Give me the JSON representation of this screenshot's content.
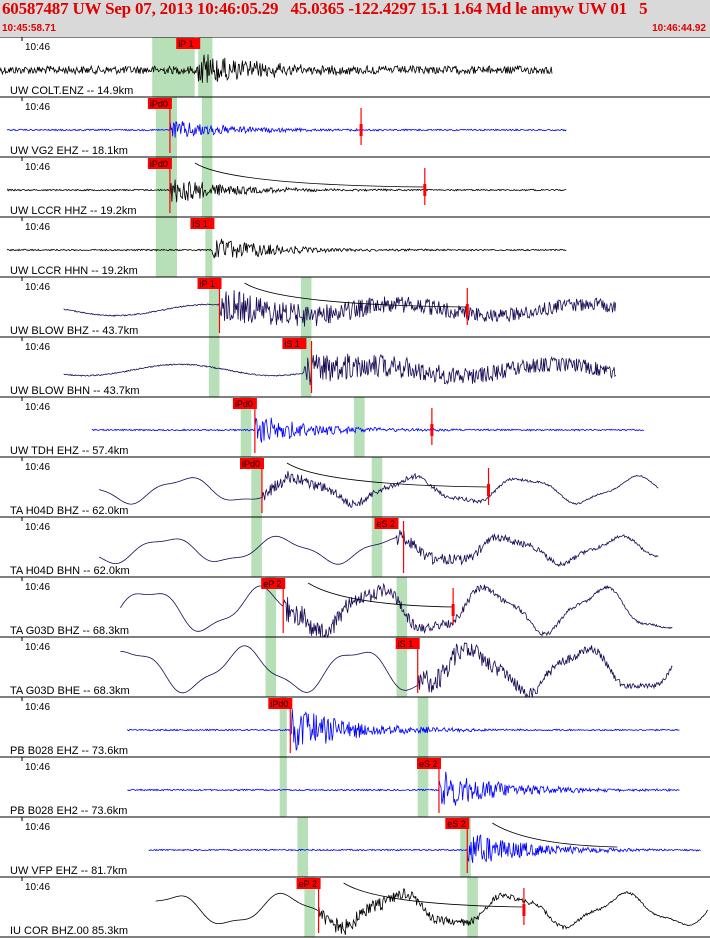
{
  "header": {
    "title": "60587487 UW Sep 07, 2013 10:46:05.29   45.0365 -122.4297 15.1 1.64 Md le amyw UW 01   5",
    "time_start": "10:45:58.71",
    "time_end": "10:46:44.92"
  },
  "colors": {
    "header_bg": "#d9d9d9",
    "header_text": "#e00000",
    "pick": "#ff0000",
    "window": "#b8e0b8",
    "trace_black": "#000000",
    "trace_blue": "#0000ff",
    "trace_navy": "#1a0a55"
  },
  "chart_data": {
    "type": "line",
    "x_range_seconds": [
      0,
      46.21
    ],
    "tick_label": "10:46",
    "traces": [
      {
        "station": "UW COLT.ENZ -- 14.9km",
        "pick": "iP 1",
        "color": "black",
        "kind": "hf",
        "start": 0.0,
        "end": 0.78,
        "onset": 0.28,
        "amp": 14,
        "win": [
          0.215,
          0.275,
          0.28,
          0.3
        ],
        "tick": null,
        "end_mark": null,
        "curve": false
      },
      {
        "station": "UW VG2 EHZ -- 18.1km",
        "pick": "iPd0",
        "color": "blue",
        "kind": "hf",
        "start": 0.01,
        "end": 0.8,
        "onset": 0.24,
        "amp": 9,
        "win": [
          0.22,
          0.25,
          0.285,
          0.3
        ],
        "tick": 0.24,
        "end_mark": 0.51,
        "curve": false
      },
      {
        "station": "UW LCCR HHZ -- 19.2km",
        "pick": "iPd0",
        "color": "black",
        "kind": "hf",
        "start": 0.01,
        "end": 0.8,
        "onset": 0.24,
        "amp": 12,
        "win": [
          0.22,
          0.25,
          0.285,
          0.3
        ],
        "tick": 0.24,
        "end_mark": 0.6,
        "curve": true
      },
      {
        "station": "UW LCCR HHN -- 19.2km",
        "pick": "iS 1",
        "color": "black",
        "kind": "hf",
        "start": 0.01,
        "end": 0.8,
        "onset": 0.3,
        "amp": 11,
        "win": [
          0.22,
          0.25,
          0.29,
          0.3
        ],
        "tick": null,
        "end_mark": null,
        "curve": false
      },
      {
        "station": "UW BLOW BHZ -- 43.7km",
        "pick": "iP 1",
        "color": "navy",
        "kind": "mix",
        "start": 0.09,
        "end": 0.87,
        "onset": 0.31,
        "amp": 16,
        "win": [
          0.295,
          0.31,
          0.425,
          0.44
        ],
        "tick": 0.31,
        "end_mark": 0.66,
        "curve": true
      },
      {
        "station": "UW BLOW BHN -- 43.7km",
        "pick": "iS 1",
        "color": "navy",
        "kind": "mix",
        "start": 0.09,
        "end": 0.87,
        "onset": 0.43,
        "amp": 16,
        "win": [
          0.295,
          0.31,
          0.425,
          0.44
        ],
        "tick": 0.44,
        "end_mark": null,
        "curve": false
      },
      {
        "station": "UW TDH EHZ -- 57.4km",
        "pick": "iPd0",
        "color": "blue",
        "kind": "hf",
        "start": 0.13,
        "end": 0.91,
        "onset": 0.36,
        "amp": 13,
        "win": [
          0.34,
          0.355,
          0.5,
          0.515
        ],
        "tick": 0.36,
        "end_mark": 0.61,
        "curve": false
      },
      {
        "station": "TA H04D BHZ -- 62.0km",
        "pick": "iPd0",
        "color": "navy",
        "kind": "lp",
        "start": 0.14,
        "end": 0.93,
        "onset": 0.37,
        "amp": 13,
        "win": [
          0.355,
          0.37,
          0.525,
          0.54
        ],
        "tick": 0.37,
        "end_mark": 0.69,
        "curve": true
      },
      {
        "station": "TA H04D BHN -- 62.0km",
        "pick": "eS 2",
        "color": "navy",
        "kind": "lp",
        "start": 0.14,
        "end": 0.93,
        "onset": 0.56,
        "amp": 13,
        "win": [
          0.355,
          0.37,
          0.525,
          0.54
        ],
        "tick": 0.57,
        "end_mark": null,
        "curve": false
      },
      {
        "station": "TA G03D BHZ -- 68.3km",
        "pick": "eP 2",
        "color": "navy",
        "kind": "lp",
        "start": 0.17,
        "end": 0.95,
        "onset": 0.4,
        "amp": 22,
        "win": [
          0.375,
          0.39,
          0.56,
          0.575
        ],
        "tick": 0.4,
        "end_mark": 0.64,
        "curve": true
      },
      {
        "station": "TA G03D BHE -- 68.3km",
        "pick": "iS 1",
        "color": "navy",
        "kind": "lp",
        "start": 0.17,
        "end": 0.95,
        "onset": 0.59,
        "amp": 22,
        "win": [
          0.375,
          0.39,
          0.56,
          0.575
        ],
        "tick": 0.59,
        "end_mark": null,
        "curve": false
      },
      {
        "station": "PB B028 EHZ -- 73.6km",
        "pick": "iPd0",
        "color": "blue",
        "kind": "hf",
        "start": 0.18,
        "end": 0.96,
        "onset": 0.41,
        "amp": 20,
        "win": [
          0.395,
          0.405,
          0.59,
          0.605
        ],
        "tick": 0.41,
        "end_mark": null,
        "curve": false
      },
      {
        "station": "PB B028 EH2 -- 73.6km",
        "pick": "eS 2",
        "color": "blue",
        "kind": "hf",
        "start": 0.18,
        "end": 0.96,
        "onset": 0.62,
        "amp": 18,
        "win": [
          0.395,
          0.405,
          0.59,
          0.605
        ],
        "tick": 0.62,
        "end_mark": null,
        "curve": false
      },
      {
        "station": "UW VFP EHZ -- 81.7km",
        "pick": "eS 2",
        "color": "blue",
        "kind": "hf",
        "start": 0.21,
        "end": 0.99,
        "onset": 0.66,
        "amp": 16,
        "win": [
          0.42,
          0.435,
          0.65,
          0.665
        ],
        "tick": 0.66,
        "end_mark": null,
        "curve": true
      },
      {
        "station": "IU COR BHZ.00 85.3km",
        "pick": "eP 2",
        "color": "black",
        "kind": "lp",
        "start": 0.22,
        "end": 1.0,
        "onset": 0.45,
        "amp": 16,
        "win": [
          0.43,
          0.445,
          0.66,
          0.675
        ],
        "tick": 0.45,
        "end_mark": 0.74,
        "curve": true
      }
    ]
  }
}
